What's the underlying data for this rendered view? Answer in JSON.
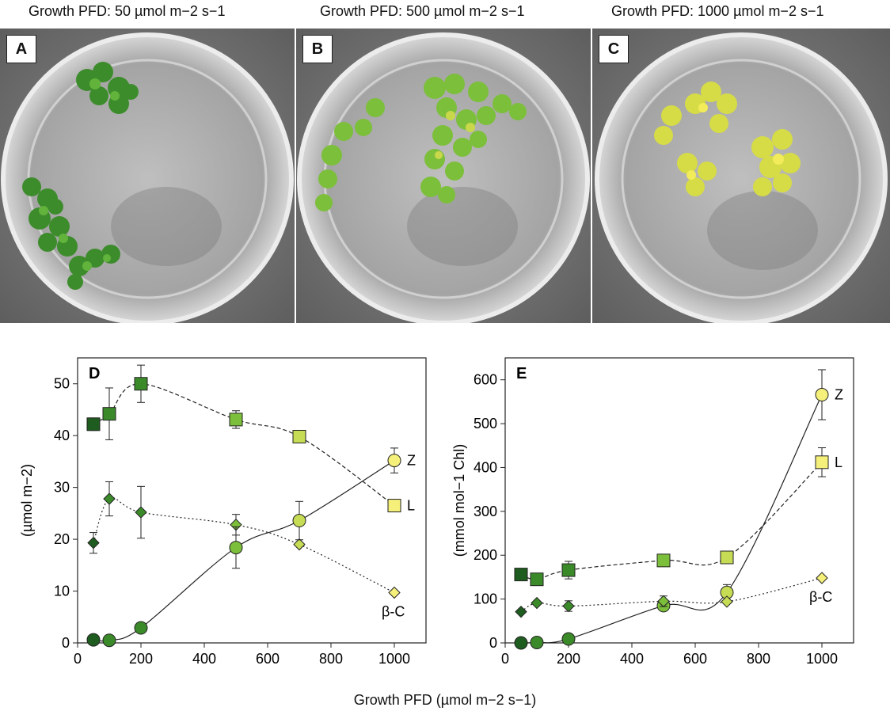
{
  "titles": [
    "Growth PFD: 50 µmol m−2 s−1",
    "Growth PFD: 500 µmol m−2 s−1",
    "Growth PFD: 1000 µmol m−2 s−1"
  ],
  "photo_labels": [
    "A",
    "B",
    "C"
  ],
  "colors": {
    "dark_green": "#1f5c1f",
    "mid_green": "#3b8a2a",
    "light_green": "#7cbf3a",
    "yellow_green": "#c6dc55",
    "yellow": "#f5f07a"
  },
  "x_axis_title": "Growth PFD (µmol m−2 s−1)",
  "chart_data": [
    {
      "type": "scatter",
      "panel_label": "D",
      "ylabel": "(µmol m−2)",
      "xlim": [
        0,
        1100
      ],
      "ylim": [
        0,
        55
      ],
      "xticks": [
        0,
        200,
        400,
        600,
        800,
        1000
      ],
      "yticks": [
        0,
        10,
        20,
        30,
        40,
        50
      ],
      "series": [
        {
          "name": "L",
          "marker": "square",
          "line": "dashed",
          "x": [
            50,
            100,
            200,
            500,
            700,
            1000
          ],
          "y": [
            42.2,
            44.2,
            50,
            43.1,
            39.8,
            26.5
          ],
          "err": [
            1.2,
            5,
            3.6,
            1.7,
            0,
            0
          ]
        },
        {
          "name": "β-C",
          "marker": "diamond",
          "line": "dotted",
          "x": [
            50,
            100,
            200,
            500,
            700,
            1000
          ],
          "y": [
            19.3,
            27.8,
            25.2,
            22.8,
            19,
            9.7
          ],
          "err": [
            2,
            3.3,
            5,
            2,
            0,
            0
          ]
        },
        {
          "name": "Z",
          "marker": "circle",
          "line": "solid",
          "x": [
            50,
            100,
            200,
            500,
            700,
            1000
          ],
          "y": [
            0.6,
            0.5,
            2.9,
            18.4,
            23.6,
            35.2
          ],
          "err": [
            0,
            0,
            0,
            4,
            3.7,
            2.4
          ]
        }
      ]
    },
    {
      "type": "scatter",
      "panel_label": "E",
      "ylabel": "(mmol mol−1 Chl)",
      "xlim": [
        0,
        1100
      ],
      "ylim": [
        0,
        650
      ],
      "xticks": [
        0,
        200,
        400,
        600,
        800,
        1000
      ],
      "yticks": [
        0,
        100,
        200,
        300,
        400,
        500,
        600
      ],
      "series": [
        {
          "name": "Z",
          "marker": "circle",
          "line": "solid",
          "x": [
            50,
            100,
            200,
            500,
            700,
            1000
          ],
          "y": [
            0,
            1,
            9,
            85,
            115,
            566
          ],
          "err": [
            0,
            0,
            0,
            10,
            18,
            57
          ]
        },
        {
          "name": "L",
          "marker": "square",
          "line": "dashed",
          "x": [
            50,
            100,
            200,
            500,
            700,
            1000
          ],
          "y": [
            156,
            145,
            166,
            188,
            195,
            412
          ],
          "err": [
            0,
            0,
            20,
            0,
            0,
            33
          ]
        },
        {
          "name": "β-C",
          "marker": "diamond",
          "line": "dotted",
          "x": [
            50,
            100,
            200,
            500,
            700,
            1000
          ],
          "y": [
            71,
            91,
            84,
            95,
            94,
            148
          ],
          "err": [
            0,
            0,
            12,
            12,
            0,
            0
          ]
        }
      ]
    }
  ]
}
